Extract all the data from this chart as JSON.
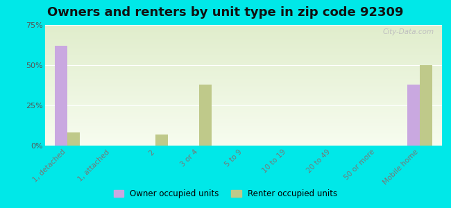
{
  "title": "Owners and renters by unit type in zip code 92309",
  "categories": [
    "1, detached",
    "1, attached",
    "2",
    "3 or 4",
    "5 to 9",
    "10 to 19",
    "20 to 49",
    "50 or more",
    "Mobile home"
  ],
  "owner_values": [
    62,
    0,
    0,
    0,
    0,
    0,
    0,
    0,
    38
  ],
  "renter_values": [
    8,
    0,
    7,
    38,
    0,
    0,
    0,
    0,
    50
  ],
  "owner_color": "#c9a8e0",
  "renter_color": "#bfc98a",
  "background_outer": "#00e8e8",
  "ylim": [
    0,
    75
  ],
  "yticks": [
    0,
    25,
    50,
    75
  ],
  "ytick_labels": [
    "0%",
    "25%",
    "50%",
    "75%"
  ],
  "legend_owner": "Owner occupied units",
  "legend_renter": "Renter occupied units",
  "title_fontsize": 13,
  "watermark": "City-Data.com"
}
